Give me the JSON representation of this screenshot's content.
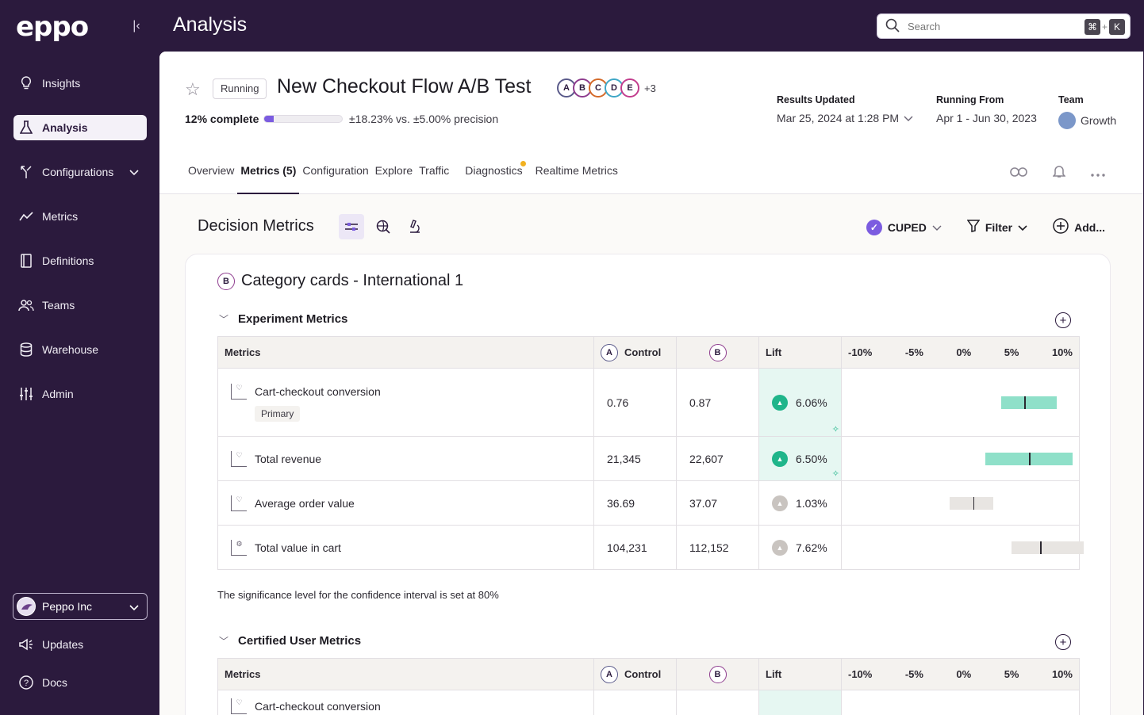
{
  "app": {
    "logo": "eppo",
    "page_title": "Analysis"
  },
  "search": {
    "placeholder": "Search",
    "shortcut_mod": "⌘",
    "shortcut_plus": "+",
    "shortcut_key": "K"
  },
  "sidebar": {
    "items": [
      {
        "label": "Insights",
        "icon": "lightbulb-icon"
      },
      {
        "label": "Analysis",
        "icon": "flask-icon",
        "active": true
      },
      {
        "label": "Configurations",
        "icon": "branch-icon"
      },
      {
        "label": "Metrics",
        "icon": "trend-icon"
      },
      {
        "label": "Definitions",
        "icon": "book-icon"
      },
      {
        "label": "Teams",
        "icon": "people-icon"
      },
      {
        "label": "Warehouse",
        "icon": "database-icon"
      },
      {
        "label": "Admin",
        "icon": "sliders-icon"
      }
    ],
    "org": "Peppo Inc",
    "updates": "Updates",
    "docs": "Docs"
  },
  "experiment": {
    "status": "Running",
    "title": "New Checkout Flow A/B Test",
    "variants": [
      "A",
      "B",
      "C",
      "D",
      "E"
    ],
    "variants_more": "+3",
    "progress_label": "12% complete",
    "progress_pct": 12,
    "precision": "±18.23% vs. ±5.00% precision",
    "results_updated_label": "Results Updated",
    "results_updated_value": "Mar 25, 2024 at 1:28 PM",
    "running_from_label": "Running From",
    "running_from_value": "Apr 1 - Jun 30, 2023",
    "team_label": "Team",
    "team_value": "Growth"
  },
  "tabs": [
    {
      "label": "Overview"
    },
    {
      "label": "Metrics (5)",
      "active": true
    },
    {
      "label": "Configuration"
    },
    {
      "label": "Explore"
    },
    {
      "label": "Traffic"
    },
    {
      "label": "Diagnostics",
      "dot": true
    },
    {
      "label": "Realtime Metrics"
    }
  ],
  "decision": {
    "title": "Decision Metrics",
    "cuped": "CUPED",
    "filter": "Filter",
    "add": "Add..."
  },
  "card": {
    "variant": "B",
    "title": "Category cards - International 1",
    "section1": "Experiment Metrics",
    "section2": "Certified User Metrics",
    "headers": {
      "metrics": "Metrics",
      "control_badge": "A",
      "control": "Control",
      "b_badge": "B",
      "lift": "Lift",
      "axis": [
        "-10%",
        "-5%",
        "0%",
        "5%",
        "10%"
      ]
    },
    "rows": [
      {
        "name": "Cart-checkout conversion",
        "tag": "Primary",
        "control": "0.76",
        "b": "0.87",
        "lift": "6.06%",
        "sig": "pos",
        "ci": [
          3.8,
          9.2
        ],
        "point": 6.06
      },
      {
        "name": "Total revenue",
        "control": "21,345",
        "b": "22,607",
        "lift": "6.50%",
        "sig": "pos",
        "ci": [
          2.2,
          10.8
        ],
        "point": 6.5
      },
      {
        "name": "Average order value",
        "control": "36.69",
        "b": "37.07",
        "lift": "1.03%",
        "sig": "neu",
        "ci": [
          -1.3,
          3.0
        ],
        "point": 1.03
      },
      {
        "name": "Total value in cart",
        "control": "104,231",
        "b": "112,152",
        "lift": "7.62%",
        "sig": "neu",
        "ci": [
          4.8,
          11.9
        ],
        "point": 7.62
      }
    ],
    "sig_note": "The significance level for the confidence interval is set at 80%",
    "row2_first": "Cart-checkout conversion"
  }
}
